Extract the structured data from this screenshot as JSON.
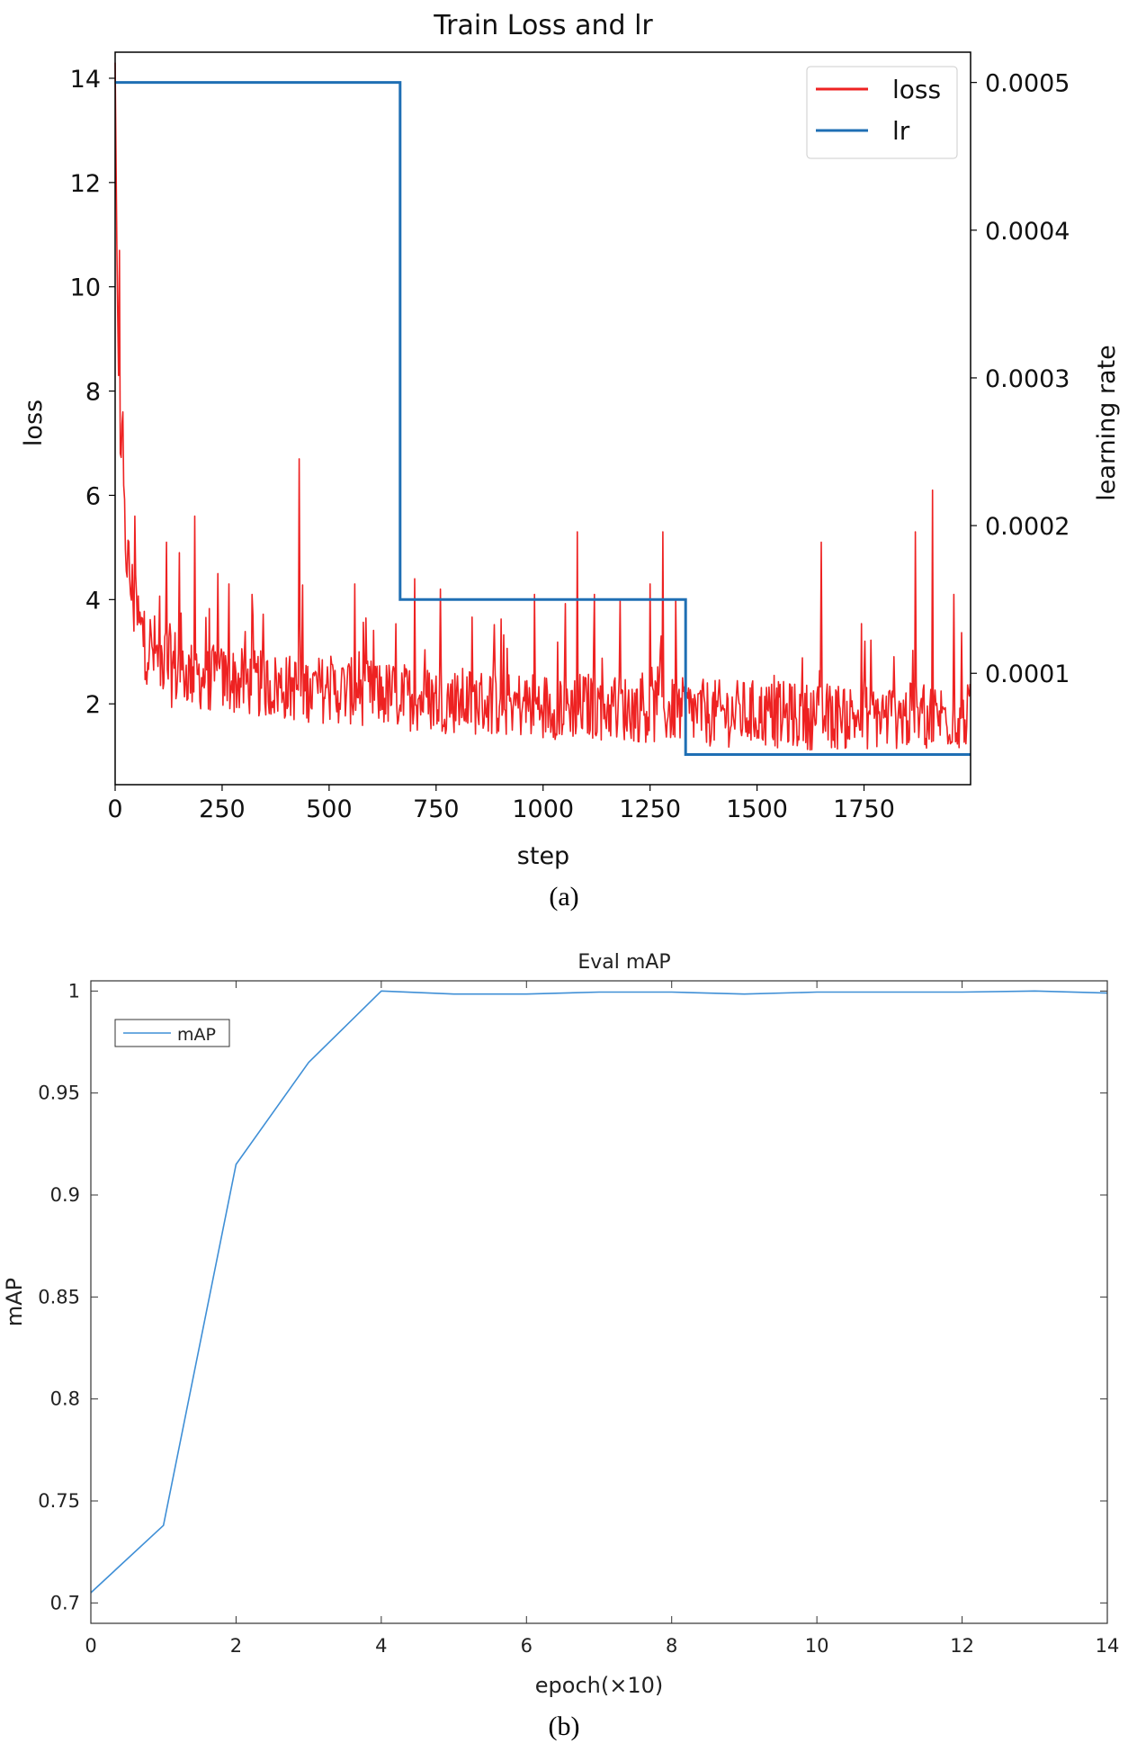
{
  "chart_data": [
    {
      "type": "line",
      "title": "Train Loss and lr",
      "xlabel": "step",
      "ylabel": "loss",
      "y2label": "learning rate",
      "xlim": [
        0,
        1999
      ],
      "ylim": [
        0.45,
        14.5
      ],
      "y2lim": [
        2.46e-05,
        0.0005205
      ],
      "xticks": [
        0,
        250,
        500,
        750,
        1000,
        1250,
        1500,
        1750
      ],
      "xtick_labels": [
        "0",
        "250",
        "500",
        "750",
        "1000",
        "1250",
        "1500",
        "1750"
      ],
      "yticks": [
        2,
        4,
        6,
        8,
        10,
        12,
        14
      ],
      "ytick_labels": [
        "2",
        "4",
        "6",
        "8",
        "10",
        "12",
        "14"
      ],
      "y2ticks": [
        0.0001,
        0.0002,
        0.0003,
        0.0004,
        0.0005
      ],
      "y2tick_labels": [
        "0.0001",
        "0.0002",
        "0.0003",
        "0.0004",
        "0.0005"
      ],
      "legend": {
        "position": "top-right",
        "entries": [
          "loss",
          "lr"
        ]
      },
      "series": [
        {
          "name": "loss",
          "color": "#ee2222",
          "axis": "left",
          "x": [
            0,
            3,
            6,
            10,
            15,
            20,
            30,
            40,
            50,
            60,
            80,
            100,
            130,
            160,
            200,
            250,
            300,
            350,
            400,
            500,
            600,
            700,
            800,
            900,
            1000,
            1100,
            1200,
            1300,
            1400,
            1500,
            1600,
            1700,
            1800,
            1900,
            1999
          ],
          "values": [
            14.3,
            11.5,
            9.4,
            7.2,
            6.2,
            5.5,
            4.6,
            4.0,
            3.6,
            3.3,
            3.0,
            2.8,
            2.65,
            2.55,
            2.45,
            2.4,
            2.35,
            2.3,
            2.25,
            2.2,
            2.15,
            2.05,
            2.0,
            1.95,
            1.9,
            1.9,
            1.85,
            1.8,
            1.75,
            1.75,
            1.7,
            1.7,
            1.7,
            1.7,
            1.7
          ],
          "spikes": [
            [
              10,
              10.7
            ],
            [
              18,
              7.6
            ],
            [
              45,
              5.6
            ],
            [
              120,
              5.1
            ],
            [
              150,
              4.9
            ],
            [
              185,
              5.6
            ],
            [
              240,
              4.5
            ],
            [
              265,
              4.3
            ],
            [
              320,
              4.1
            ],
            [
              430,
              6.7
            ],
            [
              560,
              4.3
            ],
            [
              700,
              4.4
            ],
            [
              760,
              4.2
            ],
            [
              980,
              4.1
            ],
            [
              1080,
              5.3
            ],
            [
              1120,
              4.1
            ],
            [
              1180,
              4.0
            ],
            [
              1250,
              4.3
            ],
            [
              1280,
              5.3
            ],
            [
              1310,
              4.0
            ],
            [
              1650,
              5.1
            ],
            [
              1870,
              5.3
            ],
            [
              1910,
              6.1
            ],
            [
              1960,
              4.1
            ]
          ]
        },
        {
          "name": "lr",
          "color": "#1f6fb4",
          "axis": "right",
          "step": true,
          "x": [
            0,
            666,
            666,
            1333,
            1333,
            1999
          ],
          "values": [
            0.0005,
            0.0005,
            0.00015,
            0.00015,
            4.5e-05,
            4.5e-05
          ]
        }
      ]
    },
    {
      "type": "line",
      "title": "Eval mAP",
      "xlabel": "epoch(×10)",
      "ylabel": "mAP",
      "xlim": [
        0,
        14
      ],
      "ylim": [
        0.69,
        1.005
      ],
      "xticks": [
        0,
        2,
        4,
        6,
        8,
        10,
        12,
        14
      ],
      "xtick_labels": [
        "0",
        "2",
        "4",
        "6",
        "8",
        "10",
        "12",
        "14"
      ],
      "yticks": [
        0.7,
        0.75,
        0.8,
        0.85,
        0.9,
        0.95,
        1
      ],
      "ytick_labels": [
        "0.7",
        "0.75",
        "0.8",
        "0.85",
        "0.9",
        "0.95",
        "1"
      ],
      "legend": {
        "position": "top-left",
        "entries": [
          "mAP"
        ]
      },
      "series": [
        {
          "name": "mAP",
          "color": "#3f8fd6",
          "x": [
            0,
            1,
            2,
            3,
            4,
            5,
            6,
            7,
            8,
            9,
            10,
            11,
            12,
            13,
            14
          ],
          "values": [
            0.705,
            0.738,
            0.915,
            0.965,
            1.0,
            0.9985,
            0.9985,
            0.9995,
            0.9995,
            0.9985,
            0.9995,
            0.9995,
            0.9995,
            1.0,
            0.999
          ]
        }
      ]
    }
  ],
  "captions": {
    "a": "(a)",
    "b": "(b)"
  }
}
